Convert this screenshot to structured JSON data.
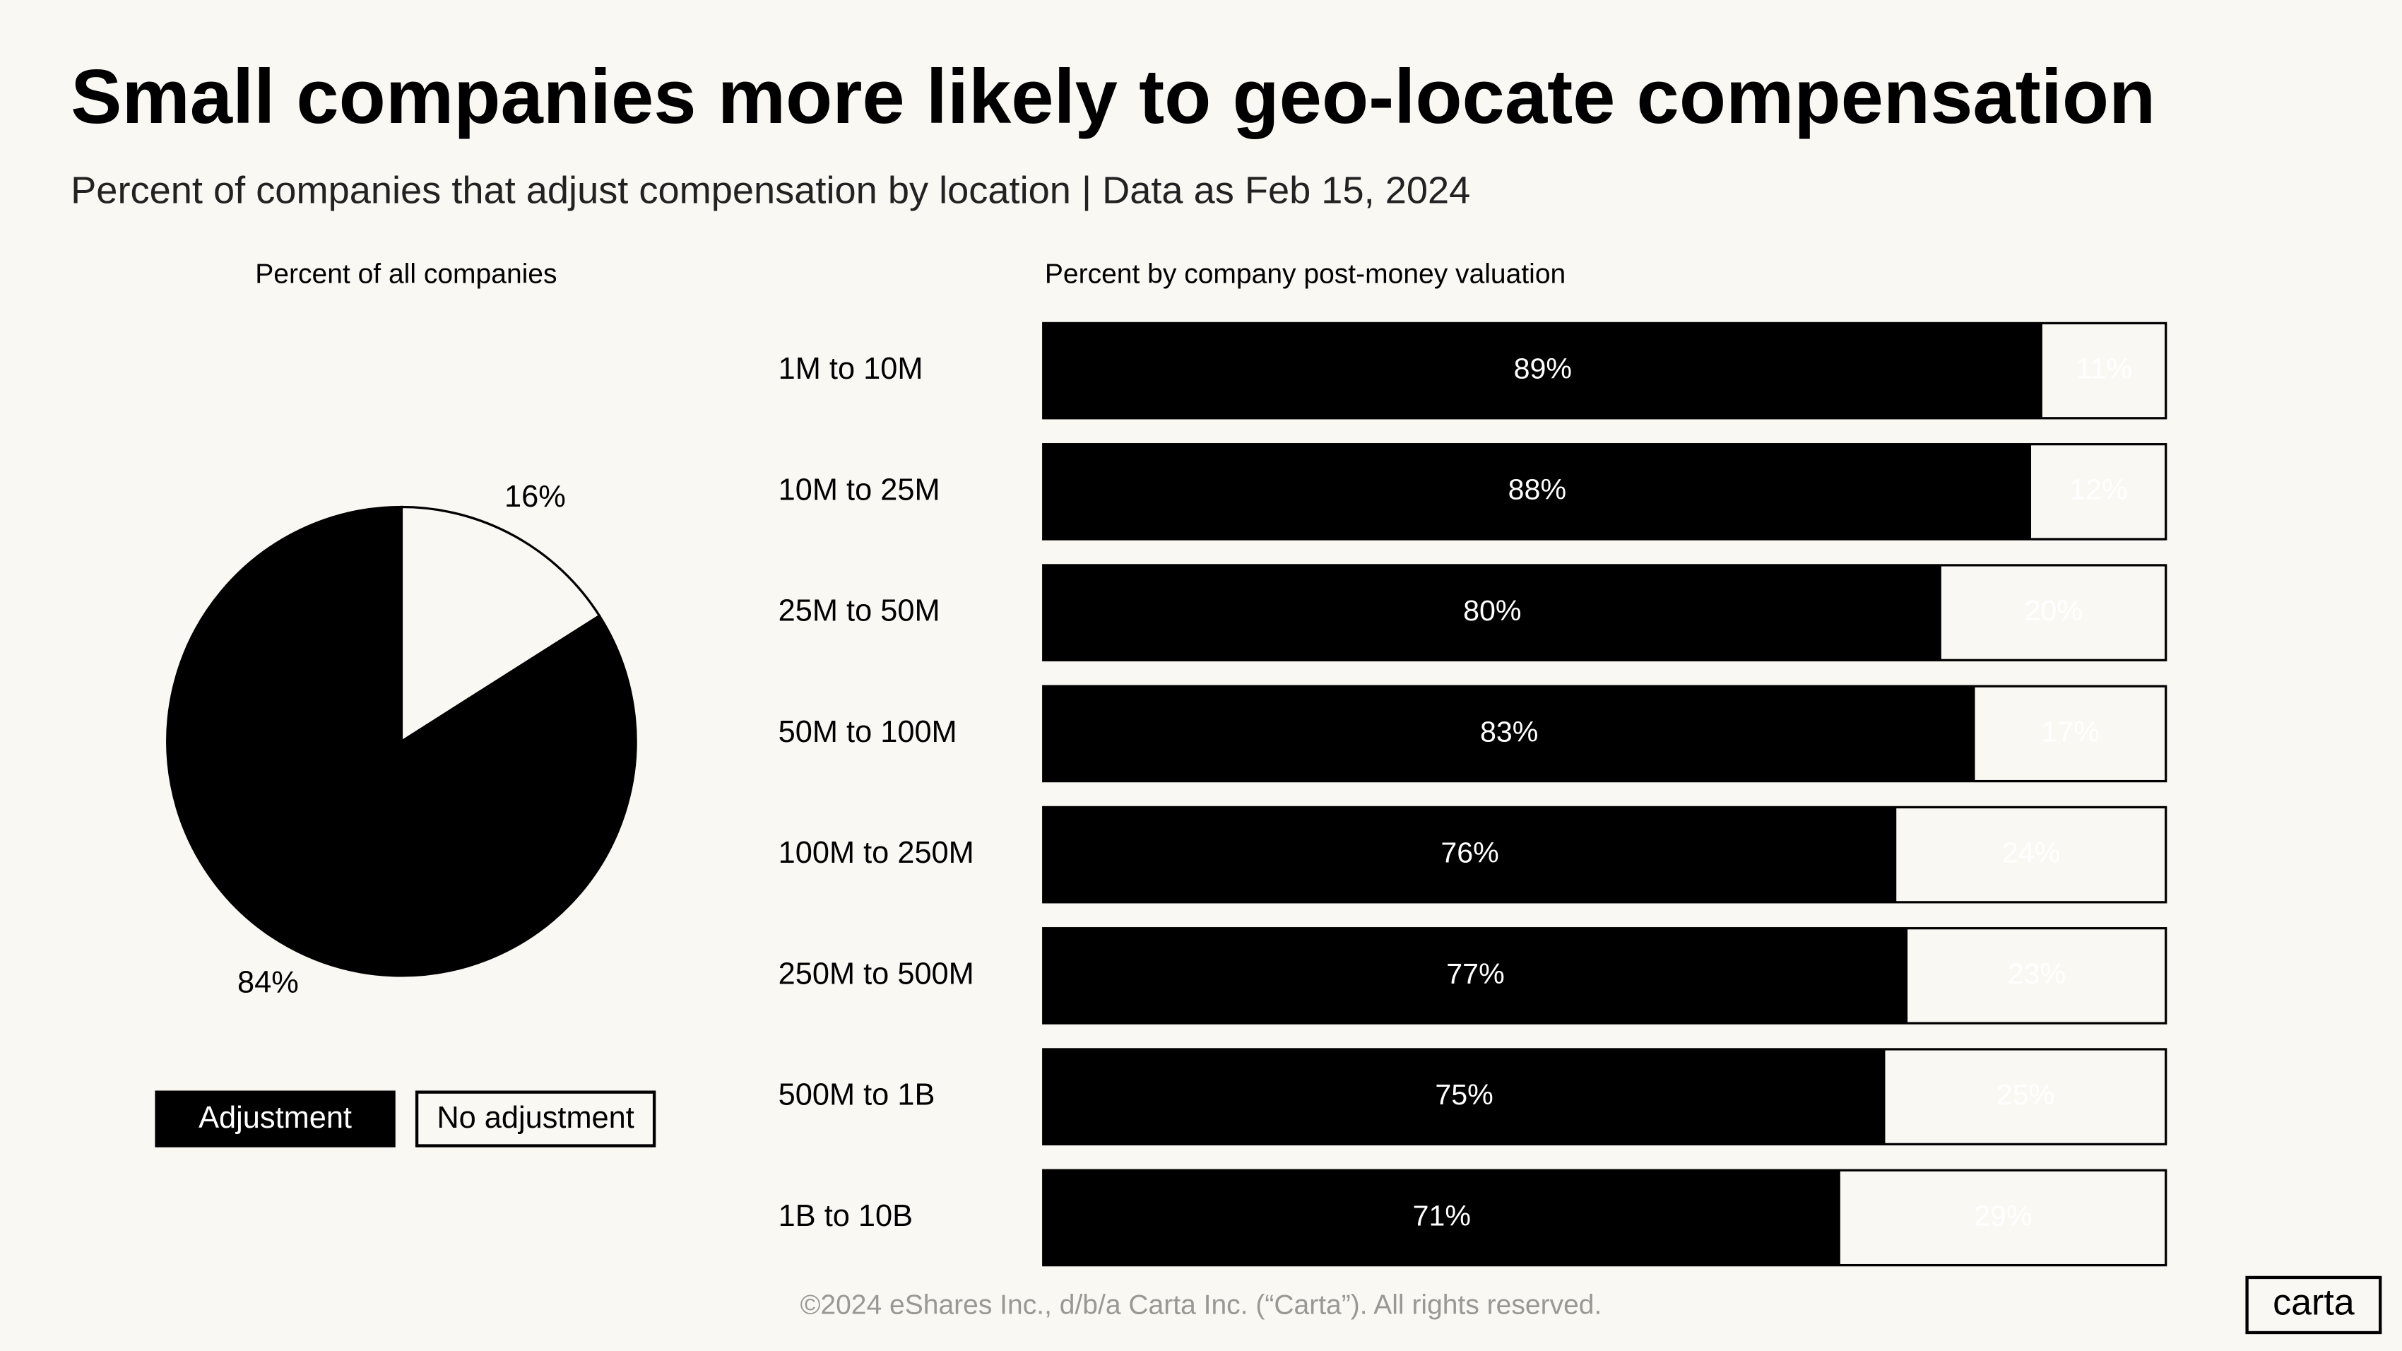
{
  "title": "Small companies more likely to geo-locate compensation",
  "subtitle": "Percent of companies that adjust compensation by location | Data as Feb 15, 2024",
  "footer": "©2024 eShares Inc., d/b/a Carta Inc. (“Carta”). All rights reserved.",
  "logo": "carta",
  "chart_data": [
    {
      "type": "pie",
      "title": "Percent of all companies",
      "labels": [
        "Adjustment",
        "No adjustment"
      ],
      "values": [
        84,
        16
      ],
      "value_labels": [
        "84%",
        "16%"
      ],
      "colors": [
        "#000000",
        "#faf8f3"
      ]
    },
    {
      "type": "bar",
      "orientation": "horizontal",
      "stacked": true,
      "title": "Percent by company post-money valuation",
      "categories": [
        "1M to 10M",
        "10M to 25M",
        "25M to 50M",
        "50M to 100M",
        "100M to 250M",
        "250M to 500M",
        "500M to 1B",
        "1B to 10B"
      ],
      "xlim": [
        0,
        100
      ],
      "series": [
        {
          "name": "Adjustment",
          "color": "#000000",
          "values": [
            89,
            88,
            80,
            83,
            76,
            77,
            75,
            71
          ],
          "value_labels": [
            "89%",
            "88%",
            "80%",
            "83%",
            "76%",
            "77%",
            "75%",
            "71%"
          ]
        },
        {
          "name": "No adjustment",
          "color": "#faf8f3",
          "values": [
            11,
            12,
            20,
            17,
            24,
            23,
            25,
            29
          ],
          "value_labels": [
            "11%",
            "12%",
            "20%",
            "17%",
            "24%",
            "23%",
            "25%",
            "29%"
          ]
        }
      ]
    }
  ]
}
